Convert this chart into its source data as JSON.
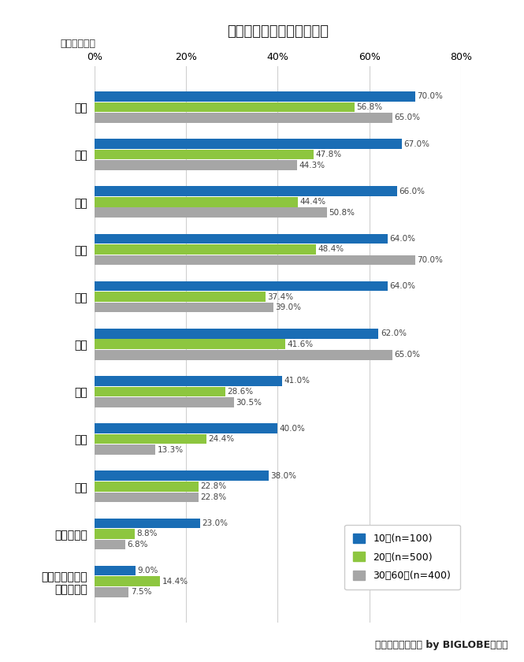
{
  "title": "人生で大切にしているもの",
  "subtitle": "（複数回答）",
  "categories": [
    "お金",
    "趣味",
    "時間",
    "家族",
    "友達",
    "健康",
    "知識",
    "恋愛",
    "仕事",
    "地位・名誉",
    "大切にしている\nものはない"
  ],
  "series": {
    "10代(n=100)": [
      70.0,
      67.0,
      66.0,
      64.0,
      64.0,
      62.0,
      41.0,
      40.0,
      38.0,
      23.0,
      9.0
    ],
    "20代(n=500)": [
      56.8,
      47.8,
      44.4,
      48.4,
      37.4,
      41.6,
      28.6,
      24.4,
      22.8,
      8.8,
      14.4
    ],
    "30～60代(n=400)": [
      65.0,
      44.3,
      50.8,
      70.0,
      39.0,
      65.0,
      30.5,
      13.3,
      22.8,
      6.8,
      7.5
    ]
  },
  "colors": {
    "10代(n=100)": "#1a6db5",
    "20代(n=500)": "#8dc63f",
    "30～60代(n=400)": "#a6a6a6"
  },
  "xlim": [
    0,
    80
  ],
  "xticks": [
    0,
    20,
    40,
    60,
    80
  ],
  "xticklabels": [
    "0%",
    "20%",
    "40%",
    "60%",
    "80%"
  ],
  "footer": "「あしたメディア by BIGLOBE」調べ",
  "background_color": "#ffffff",
  "bar_height": 0.21,
  "bar_gap": 0.015
}
